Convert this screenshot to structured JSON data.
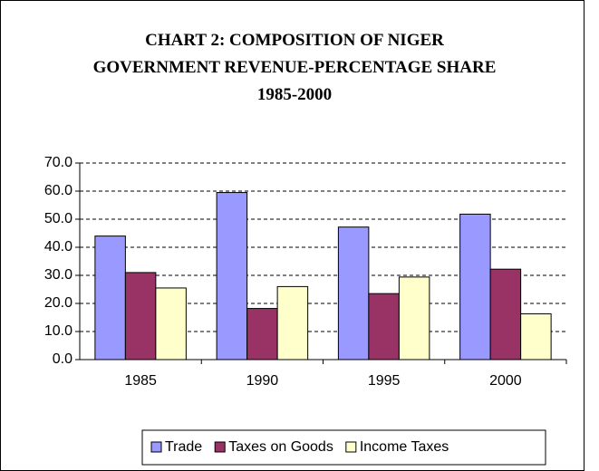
{
  "chart_data": {
    "type": "bar",
    "title": "CHART 2: COMPOSITION OF NIGER GOVERNMENT REVENUE-PERCENTAGE SHARE 1985-2000",
    "categories": [
      "1985",
      "1990",
      "1995",
      "2000"
    ],
    "series": [
      {
        "name": "Trade",
        "color": "#9999ff",
        "values": [
          44.0,
          59.5,
          47.2,
          51.8
        ]
      },
      {
        "name": "Taxes on Goods",
        "color": "#993366",
        "values": [
          31.0,
          18.2,
          23.5,
          32.2
        ]
      },
      {
        "name": "Income Taxes",
        "color": "#ffffcc",
        "values": [
          25.5,
          26.0,
          29.4,
          16.3
        ]
      }
    ],
    "ylim": [
      0,
      70
    ],
    "yticks": [
      {
        "value": 0,
        "label": "0.0"
      },
      {
        "value": 10,
        "label": "10.0"
      },
      {
        "value": 20,
        "label": "20.0"
      },
      {
        "value": 30,
        "label": "30.0"
      },
      {
        "value": 40,
        "label": "40.0"
      },
      {
        "value": 50,
        "label": "50.0"
      },
      {
        "value": 60,
        "label": "60.0"
      },
      {
        "value": 70,
        "label": "70.0"
      }
    ],
    "grid": true,
    "legend": "bottom"
  }
}
